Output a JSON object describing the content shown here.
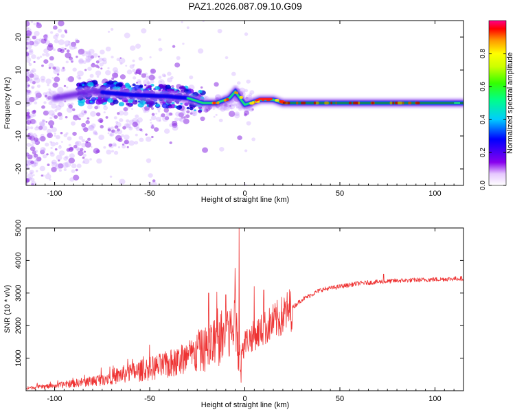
{
  "title": "PAZ1.2026.087.09.10.G09",
  "chart_data": [
    {
      "type": "heatmap",
      "xlabel": "Height of straight line (km)",
      "ylabel": "Frequency (Hz)",
      "xlim": [
        -115,
        115
      ],
      "ylim": [
        -25,
        25
      ],
      "xticks": [
        -100,
        -50,
        0,
        50,
        100
      ],
      "yticks": [
        -20,
        -10,
        0,
        10,
        20
      ],
      "colorbar": {
        "label": "Normalized spectral amplitude",
        "range": [
          0,
          1
        ],
        "ticks": [
          0.0,
          0.2,
          0.4,
          0.6,
          0.8
        ],
        "tick_labels": [
          "0.0",
          "0.2",
          "0.4",
          "0.6",
          "0.8"
        ]
      },
      "ridge": [
        [
          -115,
          0
        ],
        [
          -80,
          3.5
        ],
        [
          -60,
          2.5
        ],
        [
          -40,
          2
        ],
        [
          -30,
          1.5
        ],
        [
          -22,
          0
        ],
        [
          -15,
          0
        ],
        [
          -8,
          1.5
        ],
        [
          -5,
          3.5
        ],
        [
          -2,
          1
        ],
        [
          0,
          -0.5
        ],
        [
          3,
          0
        ],
        [
          8,
          1
        ],
        [
          15,
          1
        ],
        [
          20,
          0
        ],
        [
          115,
          0
        ]
      ]
    },
    {
      "type": "line",
      "xlabel": "Height of straight line (km)",
      "ylabel": "SNR (10 * v/v)",
      "xlim": [
        -115,
        115
      ],
      "ylim": [
        0,
        5000
      ],
      "xticks": [
        -100,
        -50,
        0,
        50,
        100
      ],
      "yticks": [
        1000,
        2000,
        3000,
        4000,
        5000
      ],
      "series": [
        {
          "name": "SNR",
          "color": "#ee3333",
          "trend": [
            [
              -115,
              80
            ],
            [
              -100,
              150
            ],
            [
              -80,
              300
            ],
            [
              -60,
              550
            ],
            [
              -40,
              800
            ],
            [
              -30,
              1000
            ],
            [
              -20,
              1300
            ],
            [
              -10,
              1700
            ],
            [
              -5,
              1900
            ],
            [
              -2,
              1000
            ],
            [
              0,
              1500
            ],
            [
              10,
              1900
            ],
            [
              20,
              2300
            ],
            [
              30,
              2800
            ],
            [
              40,
              3100
            ],
            [
              60,
              3300
            ],
            [
              80,
              3380
            ],
            [
              100,
              3420
            ],
            [
              115,
              3450
            ]
          ],
          "spikes": [
            [
              -3,
              5000
            ],
            [
              -2,
              250
            ],
            [
              -19,
              3000
            ],
            [
              -10,
              2950
            ],
            [
              -5,
              3050
            ],
            [
              5,
              3200
            ],
            [
              10,
              3100
            ],
            [
              73,
              3580
            ]
          ]
        }
      ]
    }
  ]
}
